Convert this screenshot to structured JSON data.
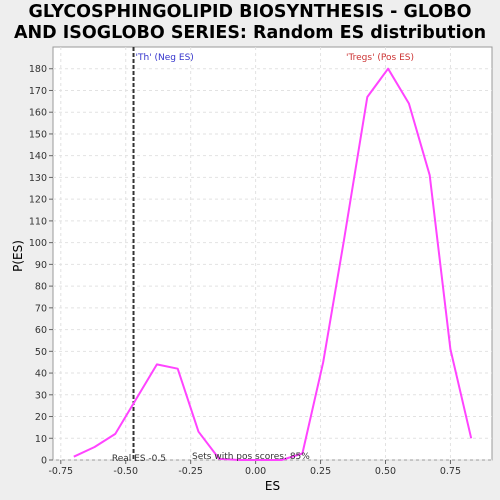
{
  "title_lines": [
    "GLYCOSPHINGOLIPID BIOSYNTHESIS - GLOBO",
    "AND ISOGLOBO SERIES: Random ES distribution"
  ],
  "chart_data": {
    "type": "line",
    "xlabel": "ES",
    "ylabel": "P(ES)",
    "xlim": [
      -0.78,
      0.91
    ],
    "ylim": [
      0,
      190
    ],
    "x_ticks": [
      -0.75,
      -0.5,
      -0.25,
      0.0,
      0.25,
      0.5,
      0.75
    ],
    "x_tick_labels": [
      "-0.75",
      "-0.50",
      "-0.25",
      "0.00",
      "0.25",
      "0.50",
      "0.75"
    ],
    "y_ticks": [
      0,
      10,
      20,
      30,
      40,
      50,
      60,
      70,
      80,
      90,
      100,
      110,
      120,
      130,
      140,
      150,
      160,
      170,
      180
    ],
    "grid": true,
    "series": [
      {
        "color": "#ff44ff",
        "x": [
          -0.7,
          -0.62,
          -0.54,
          -0.46,
          -0.38,
          -0.3,
          -0.22,
          -0.14,
          -0.06,
          0.02,
          0.1,
          0.18,
          0.26,
          0.34,
          0.43,
          0.51,
          0.59,
          0.67,
          0.75,
          0.83
        ],
        "y": [
          1.5,
          6,
          12,
          28,
          44,
          42,
          13,
          0.5,
          0,
          0,
          0,
          3,
          45,
          101,
          167,
          180,
          164,
          131,
          51,
          10
        ]
      }
    ],
    "real_es": -0.47,
    "annotations": {
      "neg_label": "'Th' (Neg ES)",
      "pos_label": "'Tregs' (Pos ES)",
      "real_es_label": "Real ES -0.5",
      "pos_scores_label": "Sets with pos scores: 85%"
    },
    "colors": {
      "neg": "#3333cc",
      "pos": "#cc3333",
      "line": "#ff44ff",
      "real_es_line": "#333333"
    }
  }
}
